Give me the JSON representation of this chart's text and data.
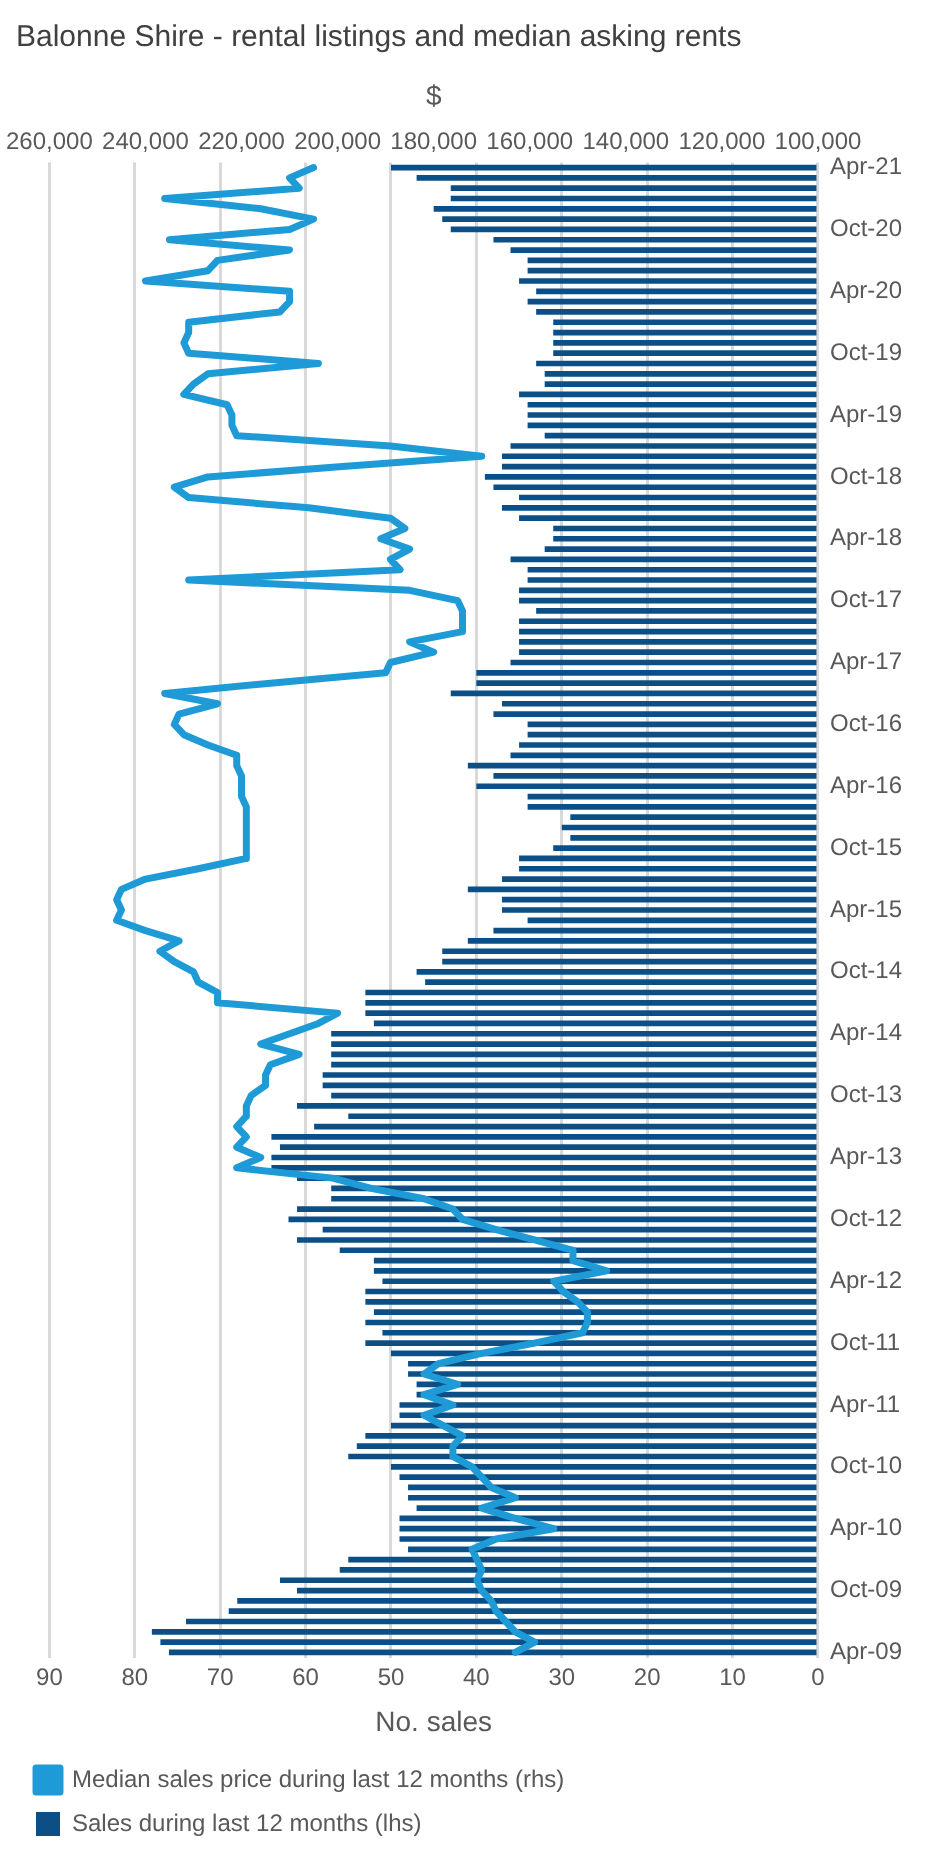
{
  "chart_data": {
    "type": "bar",
    "orientation": "horizontal",
    "title": "Balonne Shire - rental listings and median asking rents",
    "xlabel": "No. sales",
    "x2label": "$",
    "categories": [
      "Apr-21",
      null,
      null,
      null,
      null,
      null,
      "Oct-20",
      null,
      null,
      null,
      null,
      null,
      "Apr-20",
      null,
      null,
      null,
      null,
      null,
      "Oct-19",
      null,
      null,
      null,
      null,
      null,
      "Apr-19",
      null,
      null,
      null,
      null,
      null,
      "Oct-18",
      null,
      null,
      null,
      null,
      null,
      "Apr-18",
      null,
      null,
      null,
      null,
      null,
      "Oct-17",
      null,
      null,
      null,
      null,
      null,
      "Apr-17",
      null,
      null,
      null,
      null,
      null,
      "Oct-16",
      null,
      null,
      null,
      null,
      null,
      "Apr-16",
      null,
      null,
      null,
      null,
      null,
      "Oct-15",
      null,
      null,
      null,
      null,
      null,
      "Apr-15",
      null,
      null,
      null,
      null,
      null,
      "Oct-14",
      null,
      null,
      null,
      null,
      null,
      "Apr-14",
      null,
      null,
      null,
      null,
      null,
      "Oct-13",
      null,
      null,
      null,
      null,
      null,
      "Apr-13",
      null,
      null,
      null,
      null,
      null,
      "Oct-12",
      null,
      null,
      null,
      null,
      null,
      "Apr-12",
      null,
      null,
      null,
      null,
      null,
      "Oct-11",
      null,
      null,
      null,
      null,
      null,
      "Apr-11",
      null,
      null,
      null,
      null,
      null,
      "Oct-10",
      null,
      null,
      null,
      null,
      null,
      "Apr-10",
      null,
      null,
      null,
      null,
      null,
      "Oct-09",
      null,
      null,
      null,
      null,
      null,
      "Apr-09"
    ],
    "series": [
      {
        "name": "Sales during last 12 months (lhs)",
        "color": "#0b4f86",
        "values": [
          50,
          47,
          43,
          43,
          45,
          44,
          43,
          38,
          36,
          34,
          34,
          35,
          33,
          34,
          33,
          31,
          31,
          31,
          31,
          33,
          32,
          32,
          35,
          34,
          34,
          34,
          32,
          36,
          37,
          37,
          39,
          38,
          35,
          37,
          35,
          31,
          31,
          32,
          36,
          34,
          34,
          35,
          35,
          33,
          35,
          35,
          35,
          35,
          36,
          40,
          40,
          43,
          37,
          38,
          34,
          34,
          35,
          36,
          41,
          38,
          40,
          34,
          34,
          29,
          30,
          29,
          31,
          35,
          35,
          37,
          41,
          37,
          37,
          34,
          38,
          41,
          44,
          44,
          47,
          46,
          53,
          53,
          53,
          52,
          57,
          57,
          57,
          57,
          58,
          58,
          57,
          61,
          55,
          59,
          64,
          63,
          64,
          64,
          61,
          57,
          57,
          61,
          62,
          58,
          61,
          56,
          52,
          52,
          51,
          53,
          53,
          52,
          53,
          51,
          53,
          50,
          48,
          48,
          47,
          47,
          49,
          49,
          50,
          53,
          54,
          55,
          50,
          49,
          48,
          48,
          47,
          49,
          49,
          49,
          48,
          55,
          56,
          63,
          61,
          68,
          69,
          74,
          78,
          77,
          76
        ]
      },
      {
        "name": "Median sales price during last 12 months (rhs)",
        "type": "line",
        "axis": "x2",
        "color": "#1e9bd7",
        "values": [
          205000,
          210000,
          208000,
          236000,
          216000,
          205000,
          210000,
          235000,
          210000,
          225000,
          227000,
          240000,
          210000,
          210000,
          212000,
          231000,
          231000,
          232000,
          231000,
          204000,
          227000,
          230000,
          232000,
          223000,
          222000,
          222000,
          221000,
          189000,
          170000,
          199000,
          227000,
          234000,
          231000,
          206000,
          189000,
          186000,
          191000,
          185000,
          189000,
          187000,
          231000,
          185000,
          175000,
          174000,
          174000,
          174000,
          185000,
          180000,
          189000,
          190000,
          214000,
          236000,
          225000,
          233000,
          234000,
          232000,
          227000,
          221000,
          221000,
          220000,
          220000,
          220000,
          219000,
          219000,
          219000,
          219000,
          219000,
          219000,
          229000,
          240000,
          245000,
          246000,
          245000,
          246000,
          240000,
          233000,
          237000,
          234000,
          230000,
          229000,
          225000,
          225000,
          200000,
          204000,
          210000,
          216000,
          208000,
          214000,
          215000,
          215000,
          218000,
          219000,
          219000,
          221000,
          219000,
          221000,
          216000,
          221000,
          201000,
          193000,
          182000,
          176000,
          174000,
          167000,
          159000,
          151000,
          151000,
          144000,
          155000,
          153000,
          150000,
          148000,
          148000,
          149000,
          159000,
          170000,
          179000,
          182000,
          175000,
          182000,
          176000,
          182000,
          178000,
          174000,
          176000,
          176000,
          172000,
          170000,
          168000,
          163000,
          170000,
          163000,
          155000,
          167000,
          172000,
          171000,
          170000,
          171000,
          170000,
          168000,
          167000,
          165000,
          163000,
          159000,
          163000
        ]
      }
    ],
    "xlim": [
      90,
      0
    ],
    "xticks": [
      90,
      80,
      70,
      60,
      50,
      40,
      30,
      20,
      10,
      0
    ],
    "x2lim": [
      260000,
      100000
    ],
    "x2ticks": [
      {
        "value": 260000,
        "label": "260,000"
      },
      {
        "value": 240000,
        "label": "240,000"
      },
      {
        "value": 220000,
        "label": "220,000"
      },
      {
        "value": 200000,
        "label": "200,000"
      },
      {
        "value": 180000,
        "label": "180,000"
      },
      {
        "value": 160000,
        "label": "160,000"
      },
      {
        "value": 140000,
        "label": "140,000"
      },
      {
        "value": 120000,
        "label": "120,000"
      },
      {
        "value": 100000,
        "label": "100,000"
      }
    ],
    "grid": "x",
    "legend": "bottom",
    "marker": "none"
  }
}
